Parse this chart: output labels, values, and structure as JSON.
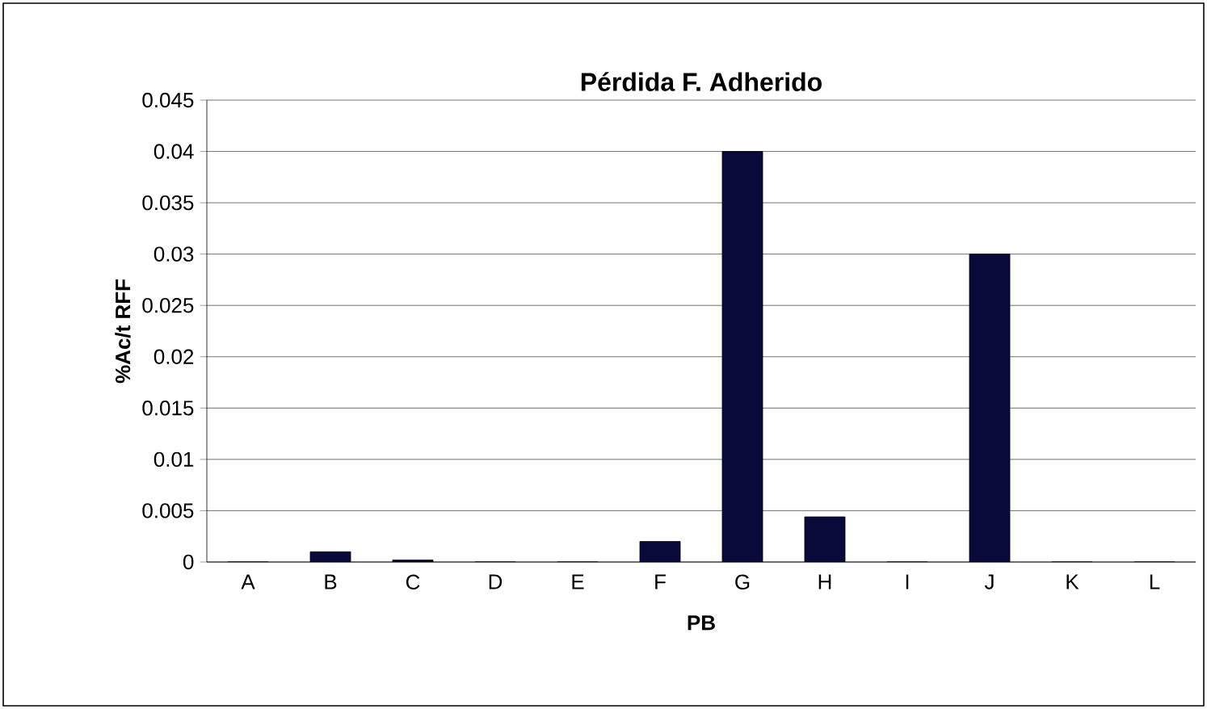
{
  "chart_data": {
    "type": "bar",
    "title": "Pérdida F. Adherido",
    "xlabel": "PB",
    "ylabel": "%Ac/t RFF",
    "categories": [
      "A",
      "B",
      "C",
      "D",
      "E",
      "F",
      "G",
      "H",
      "I",
      "J",
      "K",
      "L"
    ],
    "values": [
      0,
      0.001,
      0.0002,
      0,
      0,
      0.002,
      0.04,
      0.0044,
      0,
      0.03,
      0,
      0
    ],
    "color": "#0a0a3a",
    "ylim": [
      0,
      0.045
    ],
    "yticks": [
      0,
      0.005,
      0.01,
      0.015,
      0.02,
      0.025,
      0.03,
      0.035,
      0.04,
      0.045
    ],
    "grid": "y"
  }
}
